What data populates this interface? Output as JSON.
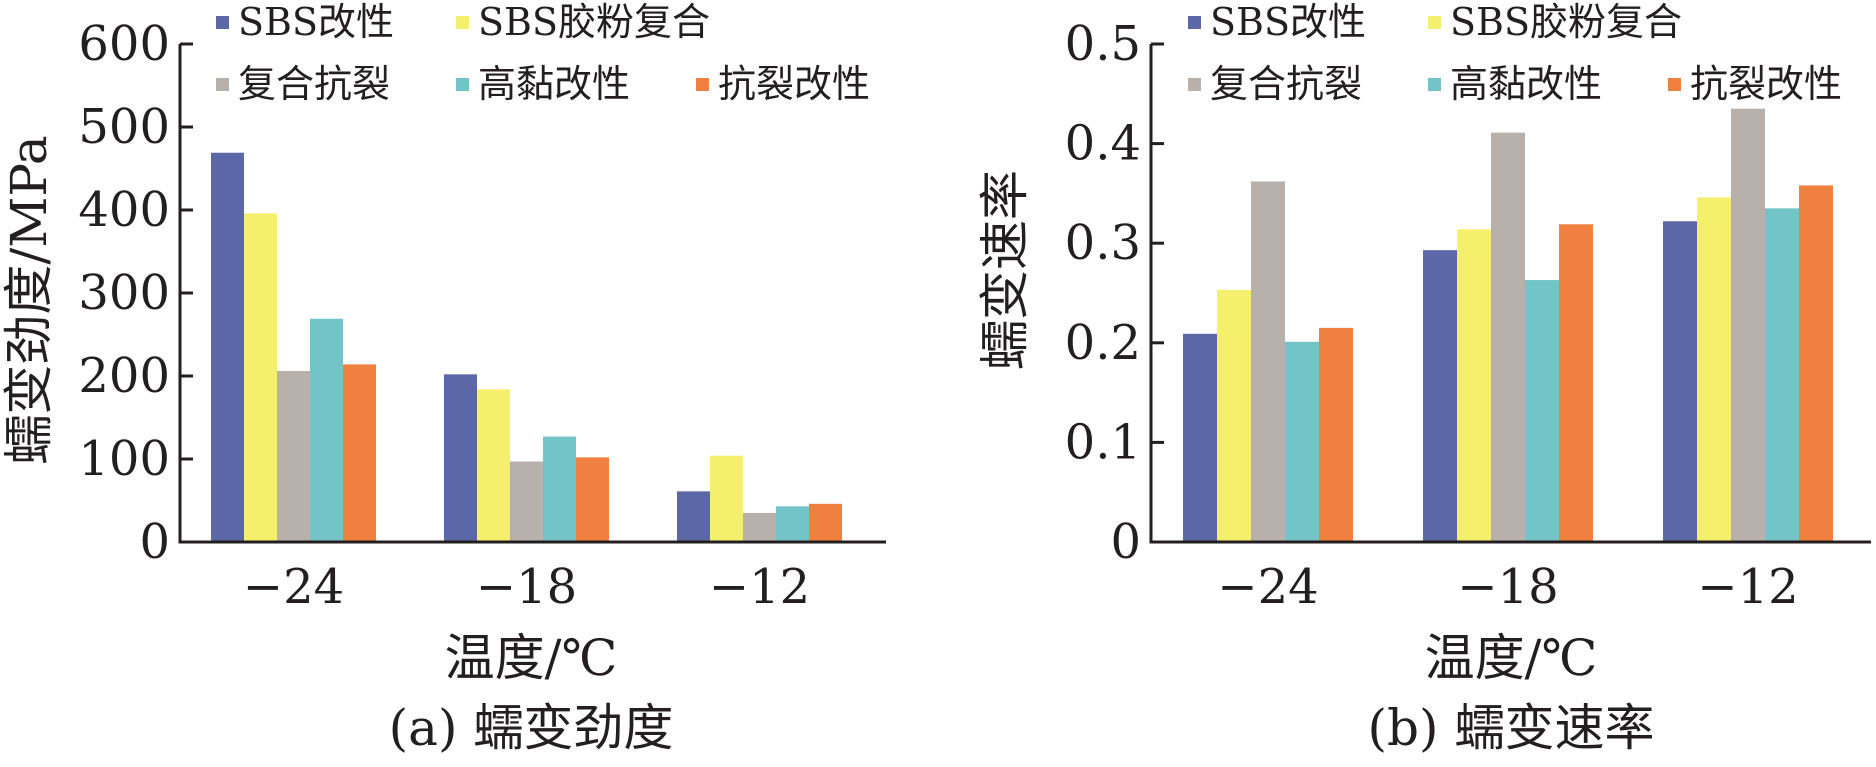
{
  "chart_data": [
    {
      "type": "bar",
      "categories": [
        "−24",
        "−18",
        "−12"
      ],
      "series": [
        {
          "name": "SBS改性",
          "color": "#5b67a7",
          "values": [
            469,
            202,
            61
          ]
        },
        {
          "name": "SBS胶粉复合",
          "color": "#f5ef6e",
          "values": [
            396,
            184,
            104
          ]
        },
        {
          "name": "复合抗裂",
          "color": "#b8b0aa",
          "values": [
            206,
            97,
            35
          ]
        },
        {
          "name": "高黏改性",
          "color": "#72c4c8",
          "values": [
            269,
            127,
            43
          ]
        },
        {
          "name": "抗裂改性",
          "color": "#ef8040",
          "values": [
            214,
            102,
            46
          ]
        }
      ],
      "ylim": [
        0,
        600
      ],
      "yticks": [
        "0",
        "100",
        "200",
        "300",
        "400",
        "500",
        "600"
      ],
      "xlabel": "温度/℃",
      "ylabel": "蠕变劲度/MPa",
      "caption": "(a) 蠕变劲度",
      "legend_position": "top"
    },
    {
      "type": "bar",
      "categories": [
        "−24",
        "−18",
        "−12"
      ],
      "series": [
        {
          "name": "SBS改性",
          "color": "#5b67a7",
          "values": [
            0.209,
            0.293,
            0.322
          ]
        },
        {
          "name": "SBS胶粉复合",
          "color": "#f5ef6e",
          "values": [
            0.253,
            0.314,
            0.346
          ]
        },
        {
          "name": "复合抗裂",
          "color": "#b8b0aa",
          "values": [
            0.362,
            0.411,
            0.435
          ]
        },
        {
          "name": "高黏改性",
          "color": "#72c4c8",
          "values": [
            0.201,
            0.263,
            0.335
          ]
        },
        {
          "name": "抗裂改性",
          "color": "#ef8040",
          "values": [
            0.215,
            0.319,
            0.358
          ]
        }
      ],
      "ylim": [
        0,
        0.5
      ],
      "yticks": [
        "0",
        "0.1",
        "0.2",
        "0.3",
        "0.4",
        "0.5"
      ],
      "xlabel": "温度/℃",
      "ylabel": "蠕变速率",
      "caption": "(b) 蠕变速率",
      "legend_position": "top"
    }
  ]
}
